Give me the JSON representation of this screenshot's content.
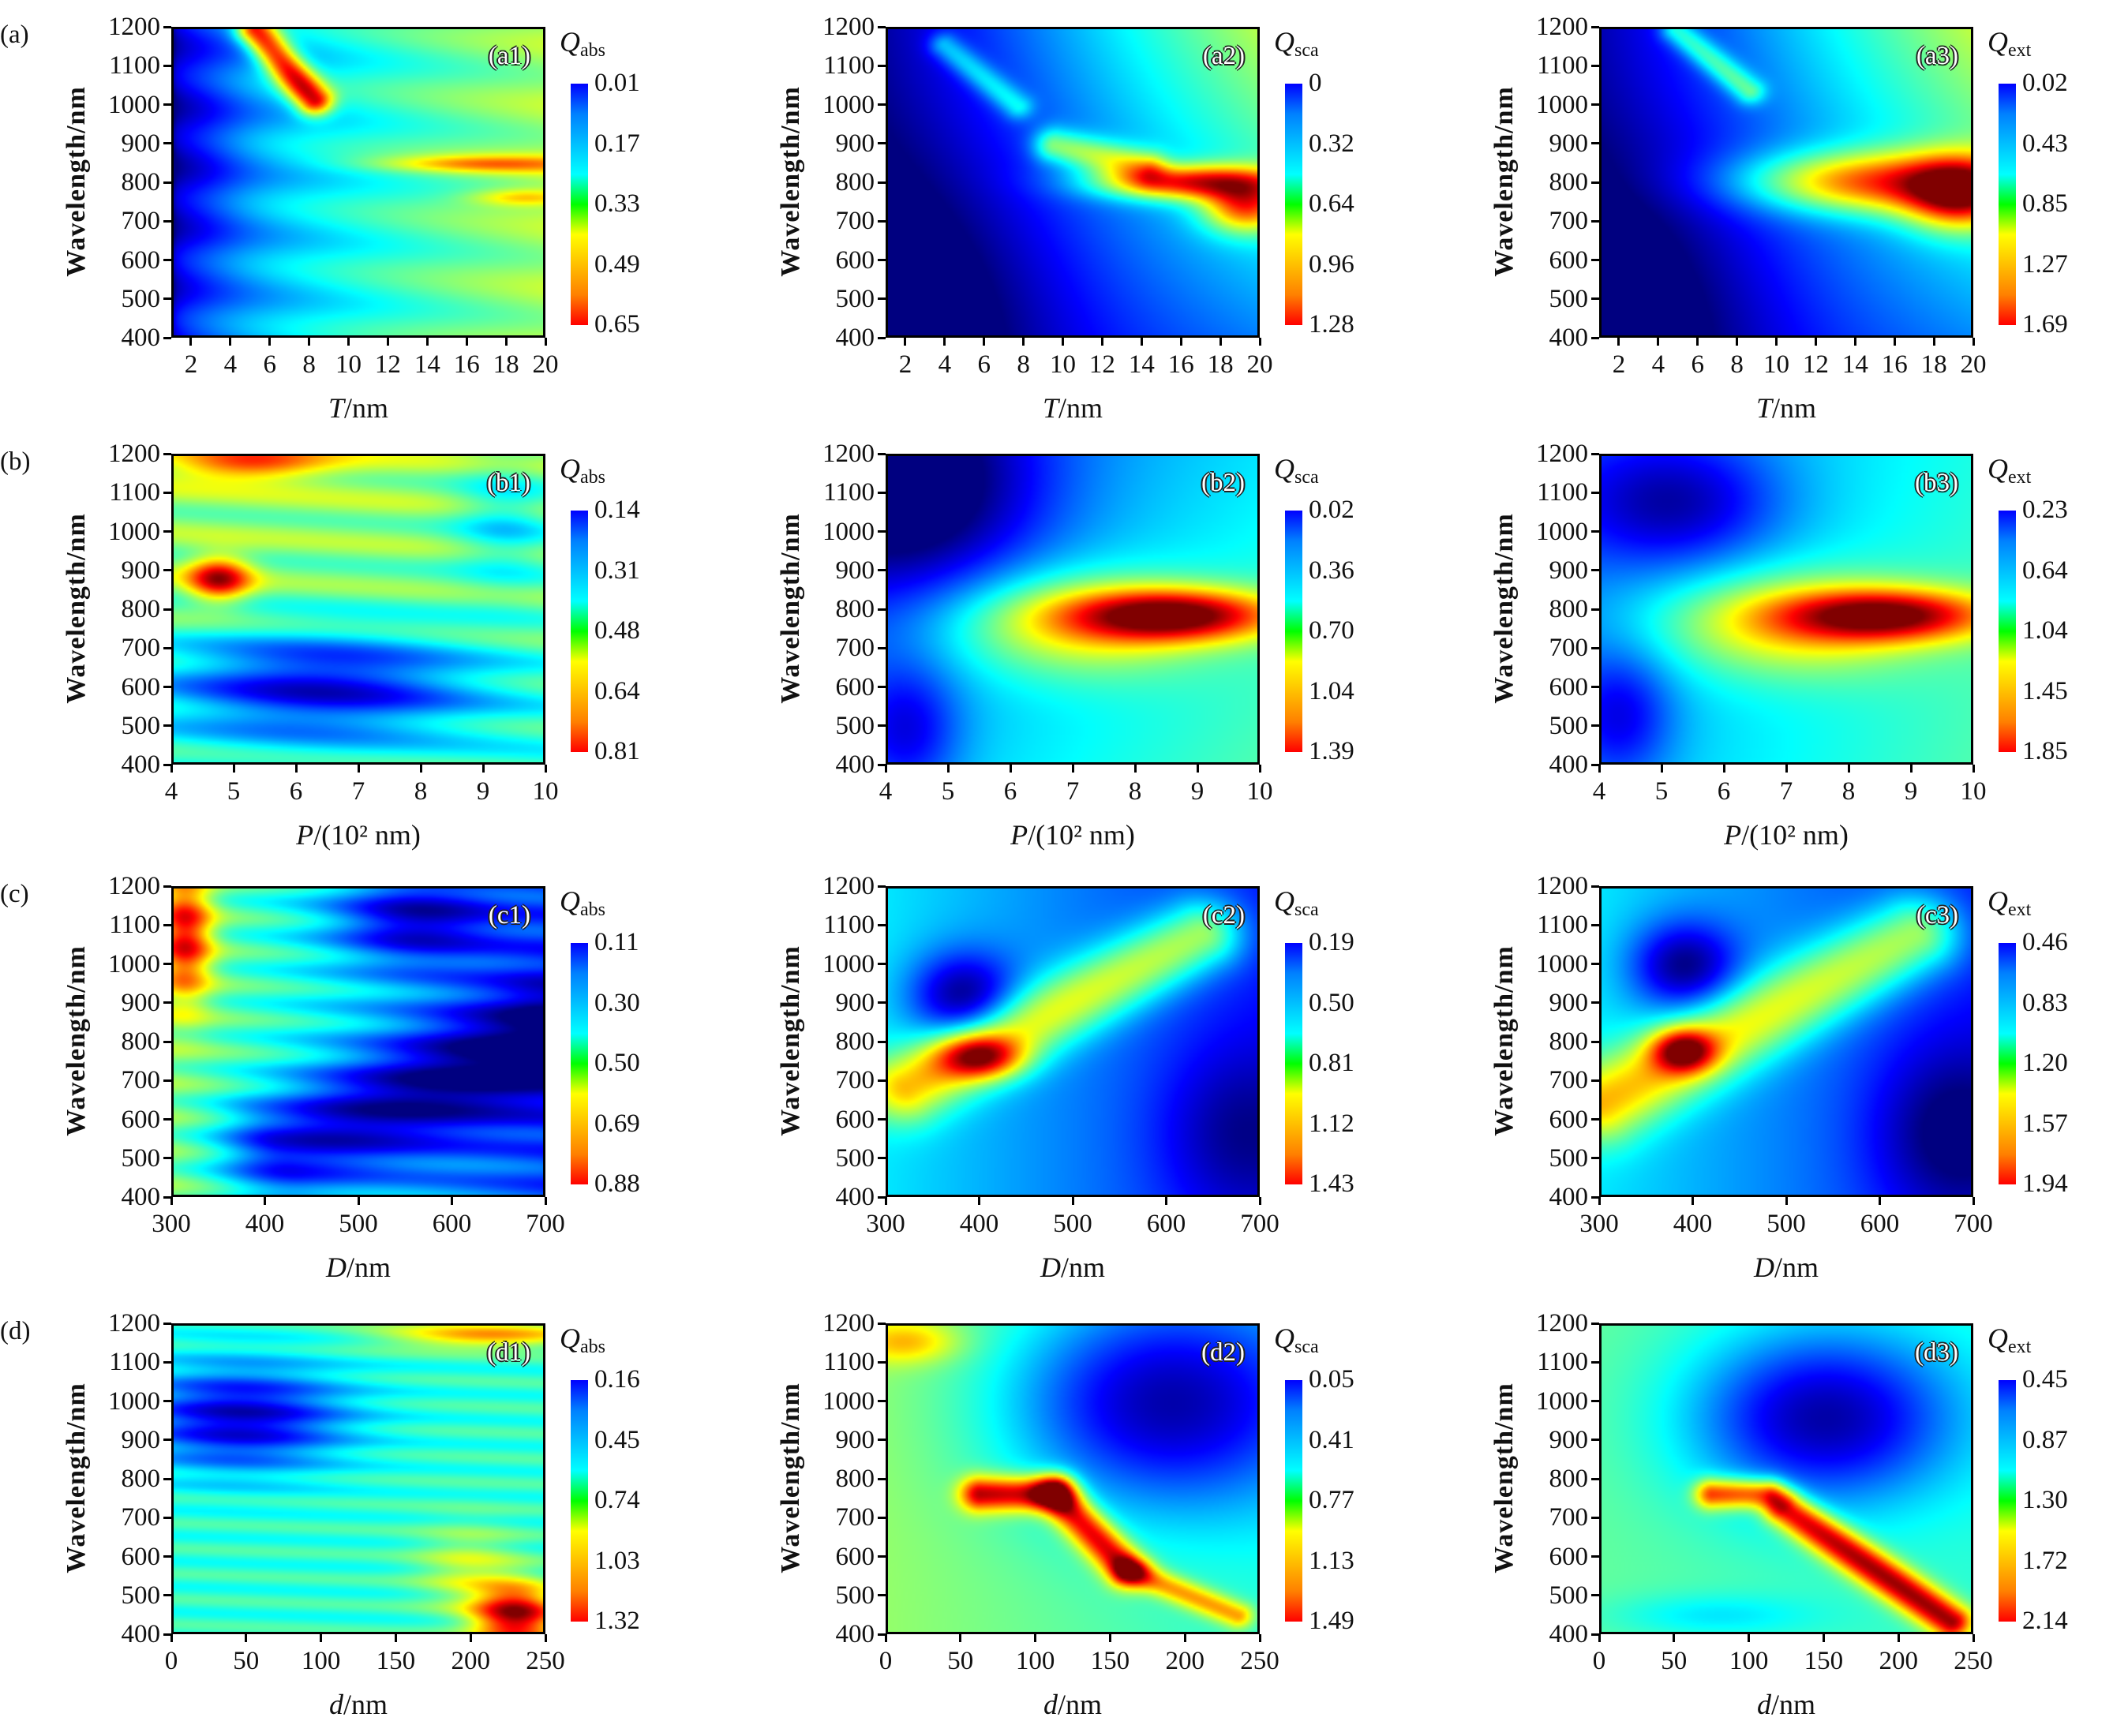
{
  "row_labels": [
    "(a)",
    "(b)",
    "(c)",
    "(d)"
  ],
  "ylabel": "Wavelength/nm",
  "chart_data": [
    {
      "type": "heatmap",
      "tag": "(a1)",
      "xvar": "T",
      "xunit": "/nm",
      "xlim": [
        1,
        20
      ],
      "xticks": [
        2,
        4,
        6,
        8,
        10,
        12,
        14,
        16,
        18,
        20
      ],
      "ylim": [
        400,
        1200
      ],
      "yticks": [
        400,
        500,
        600,
        700,
        800,
        900,
        1000,
        1100,
        1200
      ],
      "cb_symbol": "Q",
      "cb_sub": "abs",
      "cb_ticks": [
        "0.01",
        "0.17",
        "0.33",
        "0.49",
        "0.65"
      ]
    },
    {
      "type": "heatmap",
      "tag": "(a2)",
      "xvar": "T",
      "xunit": "/nm",
      "xlim": [
        1,
        20
      ],
      "xticks": [
        2,
        4,
        6,
        8,
        10,
        12,
        14,
        16,
        18,
        20
      ],
      "ylim": [
        400,
        1200
      ],
      "yticks": [
        400,
        500,
        600,
        700,
        800,
        900,
        1000,
        1100,
        1200
      ],
      "cb_symbol": "Q",
      "cb_sub": "sca",
      "cb_ticks": [
        "0",
        "0.32",
        "0.64",
        "0.96",
        "1.28"
      ]
    },
    {
      "type": "heatmap",
      "tag": "(a3)",
      "xvar": "T",
      "xunit": "/nm",
      "xlim": [
        1,
        20
      ],
      "xticks": [
        2,
        4,
        6,
        8,
        10,
        12,
        14,
        16,
        18,
        20
      ],
      "ylim": [
        400,
        1200
      ],
      "yticks": [
        400,
        500,
        600,
        700,
        800,
        900,
        1000,
        1100,
        1200
      ],
      "cb_symbol": "Q",
      "cb_sub": "ext",
      "cb_ticks": [
        "0.02",
        "0.43",
        "0.85",
        "1.27",
        "1.69"
      ]
    },
    {
      "type": "heatmap",
      "tag": "(b1)",
      "xvar": "P",
      "xunit": "/(10² nm)",
      "xlim": [
        4,
        10
      ],
      "xticks": [
        4,
        5,
        6,
        7,
        8,
        9,
        10
      ],
      "ylim": [
        400,
        1200
      ],
      "yticks": [
        400,
        500,
        600,
        700,
        800,
        900,
        1000,
        1100,
        1200
      ],
      "cb_symbol": "Q",
      "cb_sub": "abs",
      "cb_ticks": [
        "0.14",
        "0.31",
        "0.48",
        "0.64",
        "0.81"
      ]
    },
    {
      "type": "heatmap",
      "tag": "(b2)",
      "xvar": "P",
      "xunit": "/(10² nm)",
      "xlim": [
        4,
        10
      ],
      "xticks": [
        4,
        5,
        6,
        7,
        8,
        9,
        10
      ],
      "ylim": [
        400,
        1200
      ],
      "yticks": [
        400,
        500,
        600,
        700,
        800,
        900,
        1000,
        1100,
        1200
      ],
      "cb_symbol": "Q",
      "cb_sub": "sca",
      "cb_ticks": [
        "0.02",
        "0.36",
        "0.70",
        "1.04",
        "1.39"
      ]
    },
    {
      "type": "heatmap",
      "tag": "(b3)",
      "xvar": "P",
      "xunit": "/(10² nm)",
      "xlim": [
        4,
        10
      ],
      "xticks": [
        4,
        5,
        6,
        7,
        8,
        9,
        10
      ],
      "ylim": [
        400,
        1200
      ],
      "yticks": [
        400,
        500,
        600,
        700,
        800,
        900,
        1000,
        1100,
        1200
      ],
      "cb_symbol": "Q",
      "cb_sub": "ext",
      "cb_ticks": [
        "0.23",
        "0.64",
        "1.04",
        "1.45",
        "1.85"
      ]
    },
    {
      "type": "heatmap",
      "tag": "(c1)",
      "xvar": "D",
      "xunit": "/nm",
      "xlim": [
        300,
        700
      ],
      "xticks": [
        300,
        400,
        500,
        600,
        700
      ],
      "ylim": [
        400,
        1200
      ],
      "yticks": [
        400,
        500,
        600,
        700,
        800,
        900,
        1000,
        1100,
        1200
      ],
      "cb_symbol": "Q",
      "cb_sub": "abs",
      "cb_ticks": [
        "0.11",
        "0.30",
        "0.50",
        "0.69",
        "0.88"
      ]
    },
    {
      "type": "heatmap",
      "tag": "(c2)",
      "xvar": "D",
      "xunit": "/nm",
      "xlim": [
        300,
        700
      ],
      "xticks": [
        300,
        400,
        500,
        600,
        700
      ],
      "ylim": [
        400,
        1200
      ],
      "yticks": [
        400,
        500,
        600,
        700,
        800,
        900,
        1000,
        1100,
        1200
      ],
      "cb_symbol": "Q",
      "cb_sub": "sca",
      "cb_ticks": [
        "0.19",
        "0.50",
        "0.81",
        "1.12",
        "1.43"
      ]
    },
    {
      "type": "heatmap",
      "tag": "(c3)",
      "xvar": "D",
      "xunit": "/nm",
      "xlim": [
        300,
        700
      ],
      "xticks": [
        300,
        400,
        500,
        600,
        700
      ],
      "ylim": [
        400,
        1200
      ],
      "yticks": [
        400,
        500,
        600,
        700,
        800,
        900,
        1000,
        1100,
        1200
      ],
      "cb_symbol": "Q",
      "cb_sub": "ext",
      "cb_ticks": [
        "0.46",
        "0.83",
        "1.20",
        "1.57",
        "1.94"
      ]
    },
    {
      "type": "heatmap",
      "tag": "(d1)",
      "xvar": "d",
      "xunit": "/nm",
      "xlim": [
        0,
        250
      ],
      "xticks": [
        0,
        50,
        100,
        150,
        200,
        250
      ],
      "ylim": [
        400,
        1200
      ],
      "yticks": [
        400,
        500,
        600,
        700,
        800,
        900,
        1000,
        1100,
        1200
      ],
      "cb_symbol": "Q",
      "cb_sub": "abs",
      "cb_ticks": [
        "0.16",
        "0.45",
        "0.74",
        "1.03",
        "1.32"
      ]
    },
    {
      "type": "heatmap",
      "tag": "(d2)",
      "xvar": "d",
      "xunit": "/nm",
      "xlim": [
        0,
        250
      ],
      "xticks": [
        0,
        50,
        100,
        150,
        200,
        250
      ],
      "ylim": [
        400,
        1200
      ],
      "yticks": [
        400,
        500,
        600,
        700,
        800,
        900,
        1000,
        1100,
        1200
      ],
      "cb_symbol": "Q",
      "cb_sub": "sca",
      "cb_ticks": [
        "0.05",
        "0.41",
        "0.77",
        "1.13",
        "1.49"
      ]
    },
    {
      "type": "heatmap",
      "tag": "(d3)",
      "xvar": "d",
      "xunit": "/nm",
      "xlim": [
        0,
        250
      ],
      "xticks": [
        0,
        50,
        100,
        150,
        200,
        250
      ],
      "ylim": [
        400,
        1200
      ],
      "yticks": [
        400,
        500,
        600,
        700,
        800,
        900,
        1000,
        1100,
        1200
      ],
      "cb_symbol": "Q",
      "cb_sub": "ext",
      "cb_ticks": [
        "0.45",
        "0.87",
        "1.30",
        "1.72",
        "2.14"
      ]
    }
  ]
}
